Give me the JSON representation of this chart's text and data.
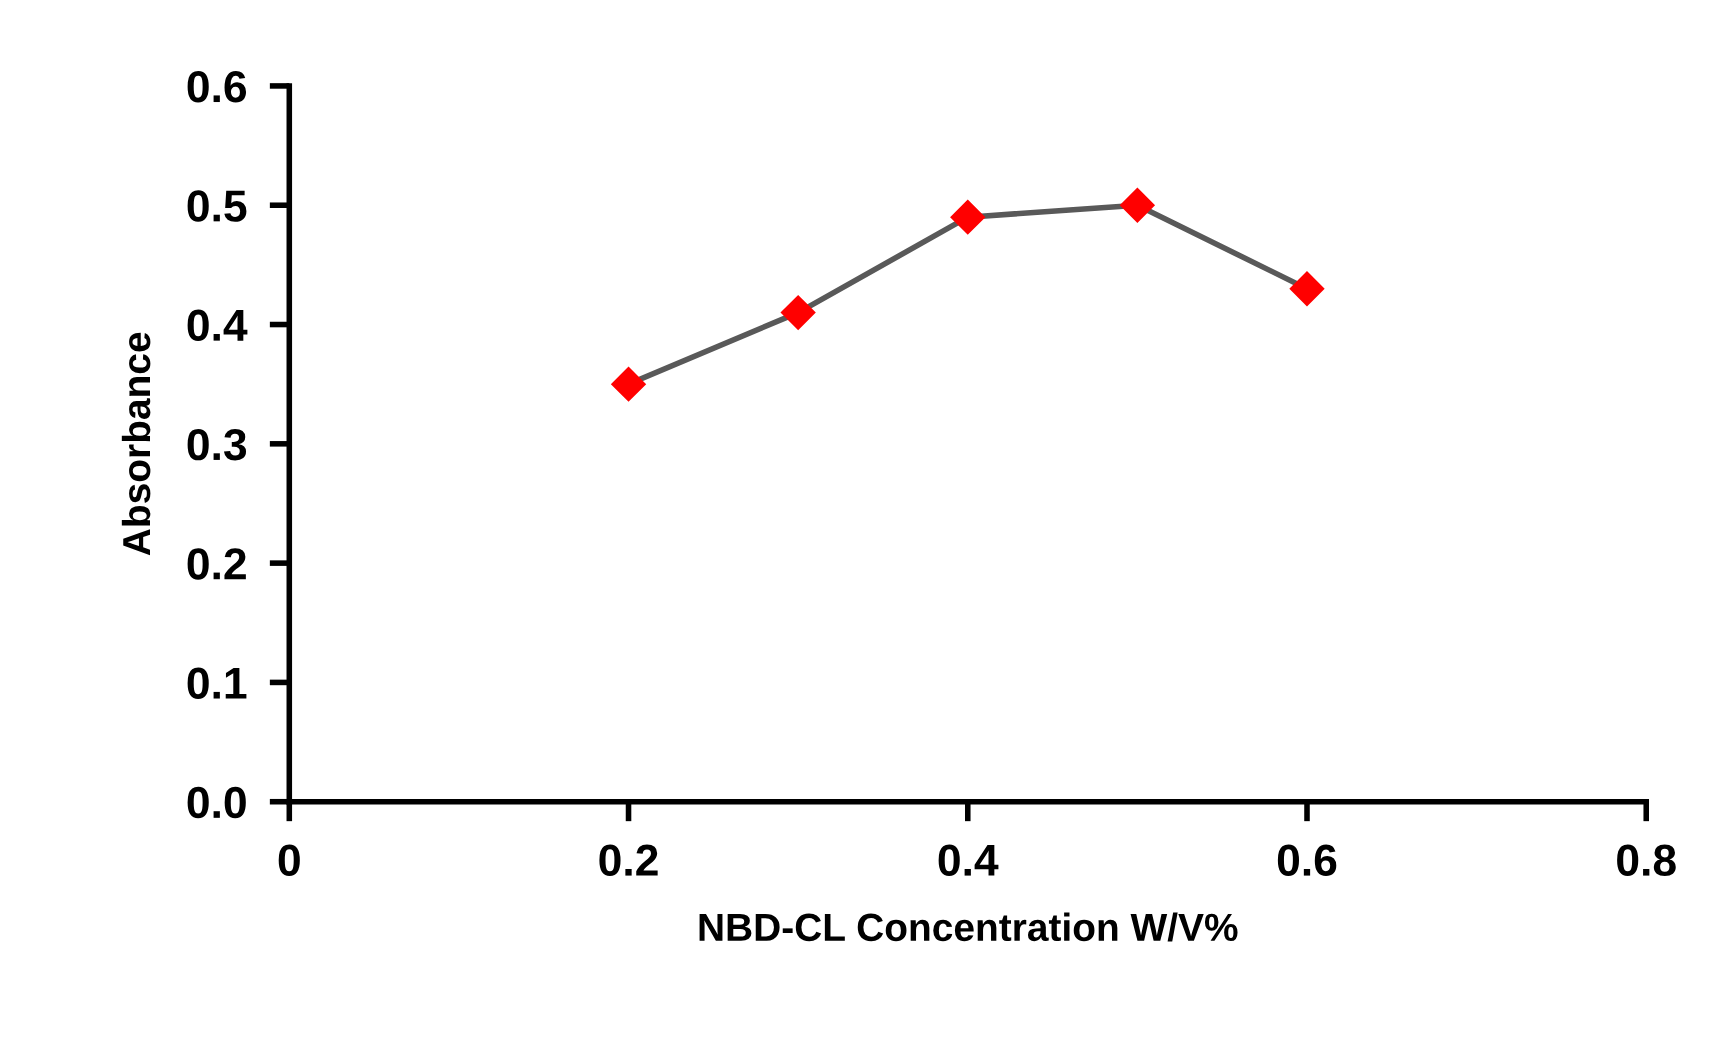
{
  "chart_data": {
    "type": "line",
    "xlabel": "NBD-CL Concentration W/V%",
    "ylabel": "Absorbance",
    "x": [
      0.2,
      0.3,
      0.4,
      0.5,
      0.6
    ],
    "series": [
      {
        "color": "#ff0000",
        "values": [
          0.35,
          0.41,
          0.49,
          0.5,
          0.43
        ]
      }
    ],
    "xlim": [
      0,
      0.8
    ],
    "xticks": [
      0,
      {
        "value": 0.2,
        "label": "0.2"
      },
      {
        "value": 0.4,
        "label": "0.4"
      },
      {
        "value": 0.6,
        "label": "0.6"
      },
      {
        "value": 0.8,
        "label": "0.8"
      }
    ],
    "ylim": [
      0,
      0.6
    ],
    "yticks": [
      {
        "value": 0,
        "label": "0.0"
      },
      0.1,
      0.2,
      0.3,
      0.4,
      0.5,
      0.6
    ],
    "grid": false,
    "marker": "diamond",
    "line_style": "solid"
  }
}
